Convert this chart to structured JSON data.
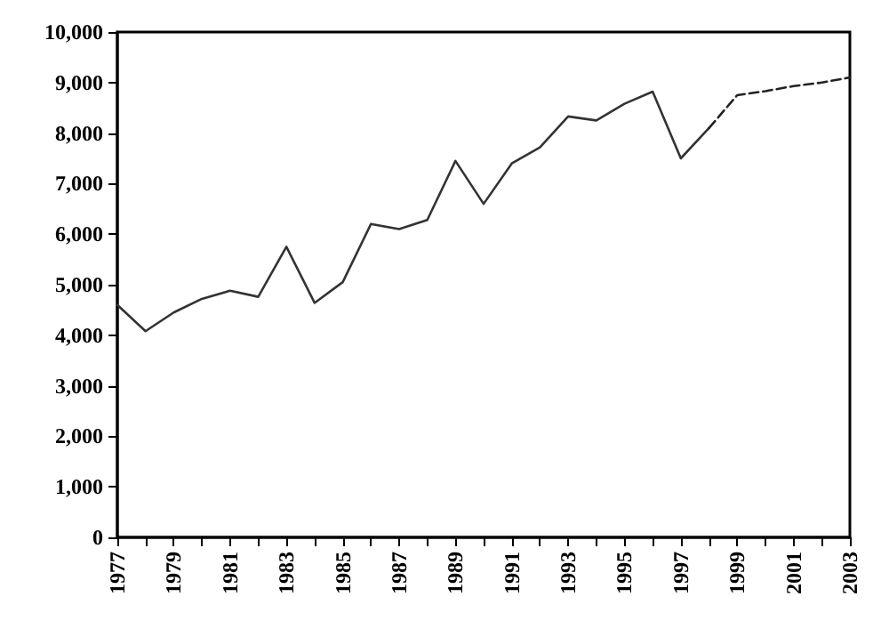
{
  "chart_data": {
    "type": "line",
    "categories": [
      "1977",
      null,
      "1979",
      null,
      "1981",
      null,
      "1983",
      null,
      "1985",
      null,
      "1987",
      null,
      "1989",
      null,
      "1991",
      null,
      "1993",
      null,
      "1995",
      null,
      "1997",
      null,
      "1999",
      null,
      "2001",
      null,
      "2003"
    ],
    "series": [
      {
        "color": "#333333",
        "line_style": "solid",
        "values": [
          4600,
          4080,
          4450,
          4720,
          4880,
          4760,
          5750,
          4640,
          5050,
          6200,
          6100,
          6280,
          7450,
          6600,
          7400,
          7720,
          8330,
          8250,
          8580,
          8820,
          7500,
          8100,
          null,
          null,
          null,
          null,
          null
        ]
      },
      {
        "color": "#222222",
        "line_style": "dashed",
        "values": [
          null,
          null,
          null,
          null,
          null,
          null,
          null,
          null,
          null,
          null,
          null,
          null,
          null,
          null,
          null,
          null,
          null,
          null,
          null,
          null,
          null,
          8100,
          8750,
          8830,
          8930,
          9000,
          9100
        ]
      }
    ],
    "ylim": [
      0,
      10000
    ],
    "yticks": [
      0,
      {
        "value": 1000,
        "label": "1,000"
      },
      {
        "value": 2000,
        "label": "2,000"
      },
      {
        "value": 3000,
        "label": "3,000"
      },
      {
        "value": 4000,
        "label": "4,000"
      },
      {
        "value": 5000,
        "label": "5,000"
      },
      {
        "value": 6000,
        "label": "6,000"
      },
      {
        "value": 7000,
        "label": "7,000"
      },
      {
        "value": 8000,
        "label": "8,000"
      },
      {
        "value": 9000,
        "label": "9,000"
      },
      {
        "value": 10000,
        "label": "10,000"
      }
    ],
    "grid": false,
    "marker": "none"
  }
}
